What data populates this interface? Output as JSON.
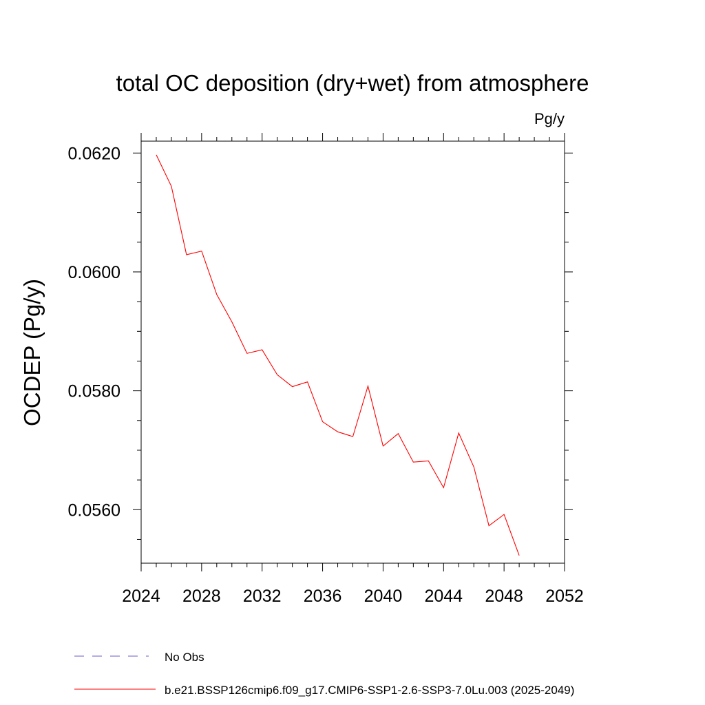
{
  "chart_data": {
    "type": "line",
    "title": "total OC deposition (dry+wet) from atmosphere",
    "units_label": "Pg/y",
    "xlabel": "",
    "ylabel": "OCDEP  (Pg/y)",
    "xlim": [
      2024,
      2052
    ],
    "ylim": [
      0.0551,
      0.0622
    ],
    "x_ticks": [
      2024,
      2028,
      2032,
      2036,
      2040,
      2044,
      2048,
      2052
    ],
    "x_tick_labels": [
      "2024",
      "2028",
      "2032",
      "2036",
      "2040",
      "2044",
      "2048",
      "2052"
    ],
    "y_ticks": [
      0.056,
      0.058,
      0.06,
      0.062
    ],
    "y_tick_labels": [
      "0.0560",
      "0.0580",
      "0.0600",
      "0.0620"
    ],
    "grid": false,
    "series": [
      {
        "name": "b.e21.BSSP126cmip6.f09_g17.CMIP6-SSP1-2.6-SSP3-7.0Lu.003 (2025-2049)",
        "color": "#ff0000",
        "x": [
          2025,
          2026,
          2027,
          2028,
          2029,
          2030,
          2031,
          2032,
          2033,
          2034,
          2035,
          2036,
          2037,
          2038,
          2039,
          2040,
          2041,
          2042,
          2043,
          2044,
          2045,
          2046,
          2047,
          2048,
          2049
        ],
        "values": [
          0.06197,
          0.06144,
          0.06029,
          0.06035,
          0.05962,
          0.05916,
          0.05863,
          0.05869,
          0.05827,
          0.05807,
          0.05815,
          0.05748,
          0.05731,
          0.05723,
          0.05808,
          0.05707,
          0.05728,
          0.0568,
          0.05682,
          0.05637,
          0.05729,
          0.05672,
          0.05573,
          0.05592,
          0.05523
        ]
      }
    ],
    "legend": [
      {
        "label": "No Obs",
        "color": "#6a5acd",
        "style": "dashed"
      },
      {
        "label": "b.e21.BSSP126cmip6.f09_g17.CMIP6-SSP1-2.6-SSP3-7.0Lu.003 (2025-2049)",
        "color": "#ff0000",
        "style": "solid"
      }
    ],
    "legend_position": "bottom"
  }
}
